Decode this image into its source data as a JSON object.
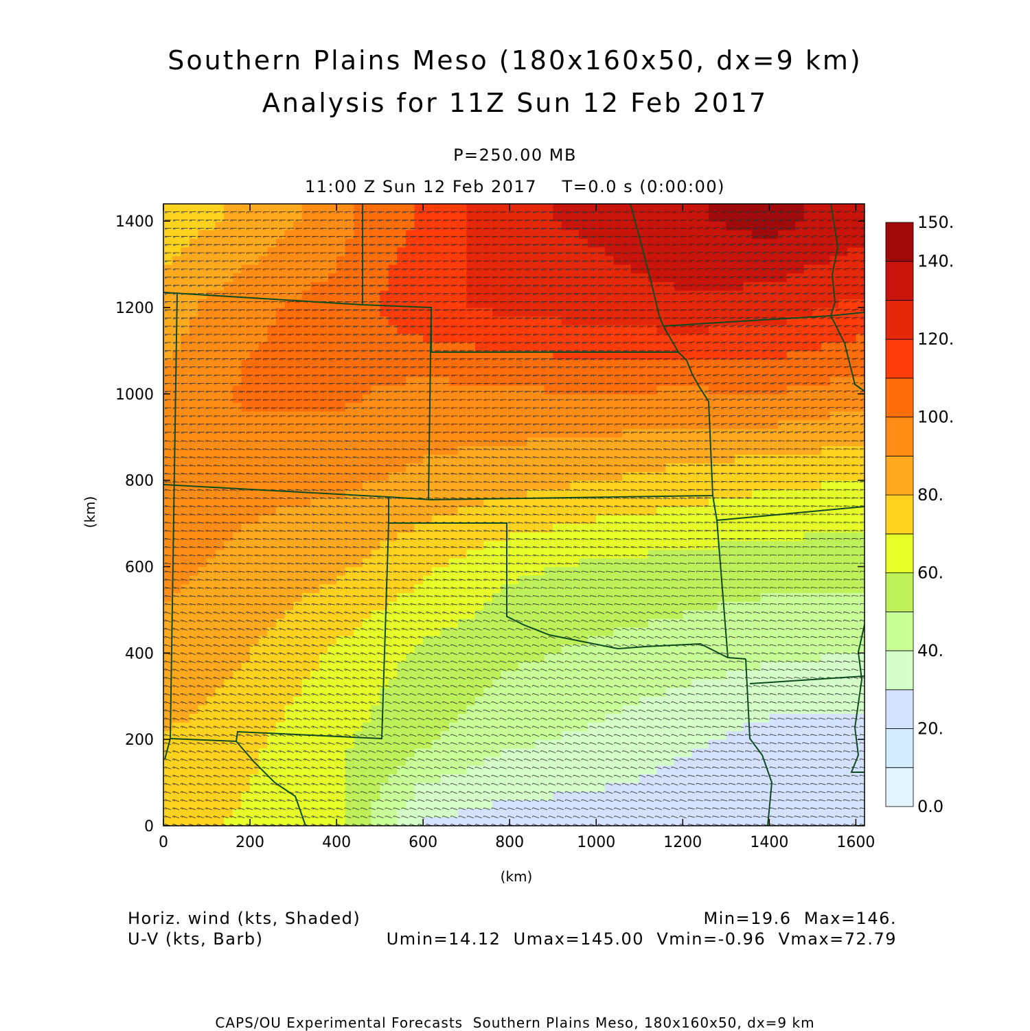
{
  "header": {
    "title_line1": "Southern Plains Meso (180x160x50, dx=9 km)",
    "title_line2": "Analysis for 11Z Sun 12 Feb 2017",
    "level": "P=250.00 MB",
    "time": "11:00 Z Sun 12 Feb 2017    T=0.0 s (0:00:00)"
  },
  "legend_notes": {
    "shaded": "Horiz. wind (kts, Shaded)",
    "barb": "U-V (kts, Barb)",
    "minmax": "Min=19.6  Max=146.",
    "uv_minmax": "Umin=14.12  Umax=145.00  Vmin=-0.96  Vmax=72.79"
  },
  "footer": "CAPS/OU Experimental Forecasts  Southern Plains Meso, 180x160x50, dx=9 km",
  "colorbar": {
    "labels": [
      "0.0",
      "20.",
      "40.",
      "60.",
      "80.",
      "100.",
      "120.",
      "140.",
      "150."
    ],
    "levels": [
      0,
      10,
      20,
      30,
      40,
      50,
      60,
      70,
      80,
      90,
      100,
      110,
      120,
      130,
      140,
      150
    ],
    "colors": [
      "#e4f4ff",
      "#d4ecff",
      "#d4e2ff",
      "#d4ffc8",
      "#c8ff96",
      "#bef05a",
      "#e6ff28",
      "#ffd21e",
      "#ffaa1e",
      "#ff8c14",
      "#ff6e0a",
      "#ff3c0a",
      "#e6280a",
      "#c8140a",
      "#a00a0a"
    ]
  },
  "chart_data": {
    "type": "heatmap",
    "variable": "Horiz. wind",
    "units": "kts",
    "xlabel": "(km)",
    "ylabel": "(km)",
    "xlim": [
      0,
      1620
    ],
    "ylim": [
      0,
      1440
    ],
    "x_ticks": [
      0,
      200,
      400,
      600,
      800,
      1000,
      1200,
      1400,
      1600
    ],
    "y_ticks": [
      0,
      200,
      400,
      600,
      800,
      1000,
      1200,
      1400
    ],
    "min": 19.6,
    "max": 146,
    "Umin": 14.12,
    "Umax": 145.0,
    "Vmin": -0.96,
    "Vmax": 72.79,
    "approx_field_kts": {
      "x_km": [
        0,
        200,
        400,
        600,
        800,
        1000,
        1200,
        1400,
        1600
      ],
      "y_km": [
        0,
        200,
        400,
        600,
        800,
        1000,
        1200,
        1400
      ],
      "values": [
        [
          75,
          68,
          62,
          28,
          25,
          24,
          23,
          22,
          22
        ],
        [
          80,
          72,
          62,
          52,
          42,
          38,
          32,
          26,
          25
        ],
        [
          88,
          80,
          68,
          58,
          52,
          48,
          45,
          42,
          40
        ],
        [
          92,
          88,
          82,
          72,
          62,
          58,
          56,
          54,
          54
        ],
        [
          92,
          92,
          92,
          88,
          84,
          80,
          76,
          72,
          70
        ],
        [
          92,
          102,
          102,
          96,
          98,
          100,
          98,
          100,
          95
        ],
        [
          85,
          98,
          104,
          118,
          122,
          125,
          128,
          125,
          118
        ],
        [
          75,
          82,
          96,
          112,
          128,
          132,
          138,
          144,
          135
        ]
      ]
    }
  }
}
